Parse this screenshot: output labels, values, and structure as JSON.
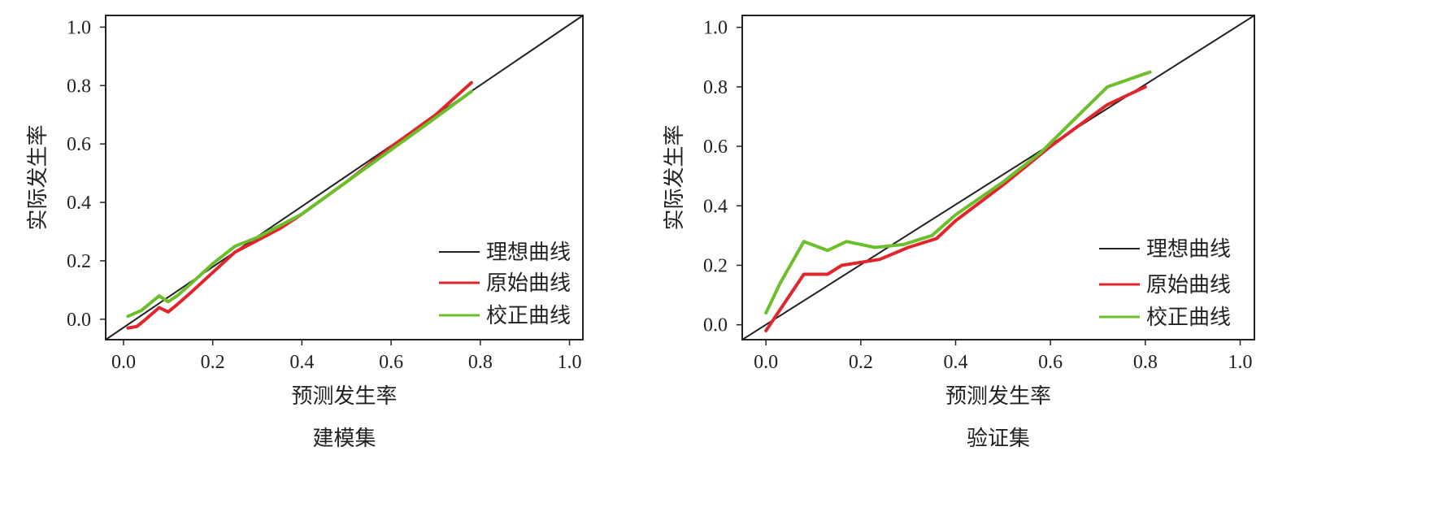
{
  "colors": {
    "ideal": "#222222",
    "original": "#e0252b",
    "corrected": "#6cbf2c",
    "frame": "#222222"
  },
  "chart_data": [
    {
      "type": "line",
      "xlabel": "预测发生率",
      "ylabel": "实际发生率",
      "caption": "建模集",
      "xlim": [
        -0.04,
        1.03
      ],
      "ylim": [
        -0.07,
        1.04
      ],
      "xticks": [
        "0.0",
        "0.2",
        "0.4",
        "0.6",
        "0.8",
        "1.0"
      ],
      "yticks": [
        "0.0",
        "0.2",
        "0.4",
        "0.6",
        "0.8",
        "1.0"
      ],
      "legend_position": "bottom-right",
      "series": [
        {
          "name": "理想曲线",
          "key": "ideal",
          "x": [
            -0.04,
            1.03
          ],
          "y": [
            -0.07,
            1.04
          ]
        },
        {
          "name": "原始曲线",
          "key": "original",
          "x": [
            0.01,
            0.03,
            0.05,
            0.08,
            0.1,
            0.12,
            0.15,
            0.2,
            0.25,
            0.3,
            0.35,
            0.4,
            0.5,
            0.6,
            0.7,
            0.78
          ],
          "y": [
            -0.03,
            -0.025,
            0.0,
            0.04,
            0.025,
            0.05,
            0.09,
            0.16,
            0.23,
            0.27,
            0.31,
            0.36,
            0.47,
            0.59,
            0.7,
            0.81
          ]
        },
        {
          "name": "校正曲线",
          "key": "corrected",
          "x": [
            0.01,
            0.04,
            0.08,
            0.1,
            0.12,
            0.15,
            0.2,
            0.25,
            0.3,
            0.35,
            0.4,
            0.5,
            0.6,
            0.7,
            0.78
          ],
          "y": [
            0.01,
            0.03,
            0.08,
            0.06,
            0.08,
            0.12,
            0.19,
            0.25,
            0.28,
            0.32,
            0.36,
            0.47,
            0.58,
            0.69,
            0.78
          ]
        }
      ]
    },
    {
      "type": "line",
      "xlabel": "预测发生率",
      "ylabel": "实际发生率",
      "caption": "验证集",
      "xlim": [
        -0.05,
        1.03
      ],
      "ylim": [
        -0.05,
        1.04
      ],
      "xticks": [
        "0.0",
        "0.2",
        "0.4",
        "0.6",
        "0.8",
        "1.0"
      ],
      "yticks": [
        "0.0",
        "0.2",
        "0.4",
        "0.6",
        "0.8",
        "1.0"
      ],
      "legend_position": "bottom-right",
      "series": [
        {
          "name": "理想曲线",
          "key": "ideal",
          "x": [
            -0.05,
            1.03
          ],
          "y": [
            -0.05,
            1.04
          ]
        },
        {
          "name": "原始曲线",
          "key": "original",
          "x": [
            0.0,
            0.08,
            0.13,
            0.16,
            0.24,
            0.3,
            0.36,
            0.4,
            0.5,
            0.6,
            0.72,
            0.8
          ],
          "y": [
            -0.02,
            0.17,
            0.17,
            0.2,
            0.22,
            0.26,
            0.29,
            0.35,
            0.47,
            0.6,
            0.74,
            0.8
          ]
        },
        {
          "name": "校正曲线",
          "key": "corrected",
          "x": [
            0.0,
            0.03,
            0.08,
            0.13,
            0.17,
            0.23,
            0.29,
            0.35,
            0.4,
            0.5,
            0.58,
            0.65,
            0.72,
            0.81
          ],
          "y": [
            0.04,
            0.14,
            0.28,
            0.25,
            0.28,
            0.26,
            0.27,
            0.3,
            0.37,
            0.48,
            0.58,
            0.69,
            0.8,
            0.85
          ]
        }
      ]
    }
  ]
}
